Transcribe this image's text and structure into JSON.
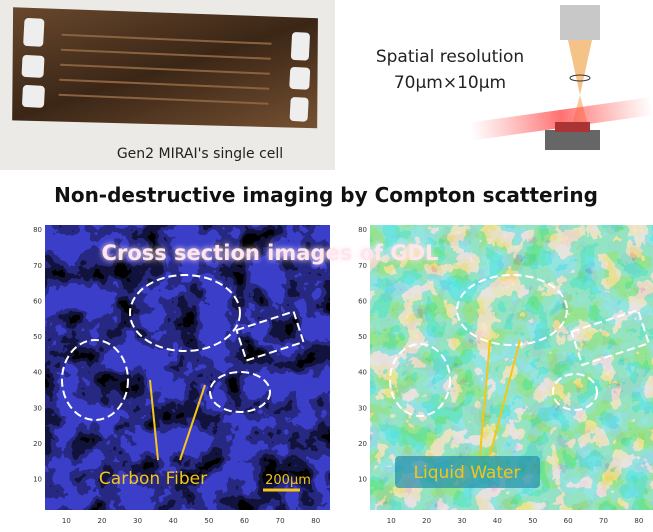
{
  "photo_caption": "Gen2 MIRAI's single cell",
  "resolution": {
    "label": "Spatial resolution",
    "value": "70μm×10μm"
  },
  "heading": "Non-destructive imaging by Compton scattering",
  "overlay_title": "Cross section images of GDL",
  "left_panel": {
    "label": "Carbon Fiber",
    "scale": "200μm",
    "y_ticks": [
      "80",
      "70",
      "60",
      "50",
      "40",
      "30",
      "20",
      "10"
    ],
    "x_ticks": [
      "10",
      "20",
      "30",
      "40",
      "50",
      "60",
      "70",
      "80"
    ]
  },
  "right_panel": {
    "label": "Liquid Water",
    "y_ticks": [
      "80",
      "70",
      "60",
      "50",
      "40",
      "30",
      "20",
      "10"
    ],
    "x_ticks": [
      "10",
      "20",
      "30",
      "40",
      "50",
      "60",
      "70",
      "80"
    ]
  }
}
